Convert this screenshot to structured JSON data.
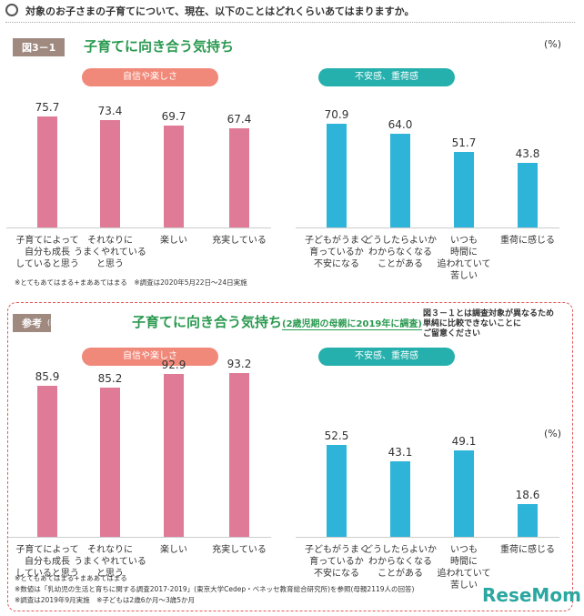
{
  "question": "対象のお子さまの子育てについて、現在、以下のことはどれくらいあてはまりますか。",
  "watermark": "ReseMom",
  "chart_data": [
    {
      "type": "bar",
      "badge": "図3－1",
      "title": "子育てに向き合う気持ち",
      "unit": "(%)",
      "groups": [
        {
          "name": "自信や楽しさ",
          "header_color": "#f1897a",
          "color": "#e07b97",
          "categories": [
            "子育てによって\n自分も成長\nしていると思う",
            "それなりに\nうまくやれている\nと思う",
            "楽しい",
            "充実している"
          ],
          "values": [
            75.7,
            73.4,
            69.7,
            67.4
          ]
        },
        {
          "name": "不安感、重荷感",
          "header_color": "#25b0ad",
          "color": "#2eb4d8",
          "categories": [
            "子どもがうまく\n育っているか\n不安になる",
            "どうしたらよいか\nわからなくなる\nことがある",
            "いつも\n時間に\n追われていて\n苦しい",
            "重荷に感じる"
          ],
          "values": [
            70.9,
            64.0,
            51.7,
            43.8
          ],
          "value_labels": [
            "70.9",
            "64.0",
            "51.7",
            "43.8"
          ]
        }
      ],
      "notes": [
        "※とてもあてはまる+まああてはまる　※調査は2020年5月22日～24日実施"
      ]
    },
    {
      "type": "bar",
      "badge": "参考",
      "badge_sub": "(新型コロナ流行前)",
      "title": "子育てに向き合う気持ち",
      "subtitle": "(2歳児期の母親に2019年に調査)",
      "caveat": "図３－１とは調査対象が異なるため\n単純に比較できないことに\nご留意ください",
      "unit": "(%)",
      "groups": [
        {
          "name": "自信や楽しさ",
          "header_color": "#f1897a",
          "color": "#e07b97",
          "categories": [
            "子育てによって\n自分も成長\nしていると思う",
            "それなりに\nうまくやれている\nと思う",
            "楽しい",
            "充実している"
          ],
          "values": [
            85.9,
            85.2,
            92.9,
            93.2
          ]
        },
        {
          "name": "不安感、重荷感",
          "header_color": "#25b0ad",
          "color": "#2eb4d8",
          "categories": [
            "子どもがうまく\n育っているか\n不安になる",
            "どうしたらよいか\nわからなくなる\nことがある",
            "いつも\n時間に\n追われていて\n苦しい",
            "重荷に感じる"
          ],
          "values": [
            52.5,
            43.1,
            49.1,
            18.6
          ]
        }
      ],
      "notes": [
        "※とてもあてはまる+まああてはまる",
        "※数値は「乳幼児の生活と育ちに関する調査2017-2019」(東京大学Cedep・ベネッセ教育総合研究所)を参照(母親2119人の回答)",
        "※調査は2019年9月実施　※子どもは2歳6か月～3歳5か月"
      ]
    }
  ]
}
